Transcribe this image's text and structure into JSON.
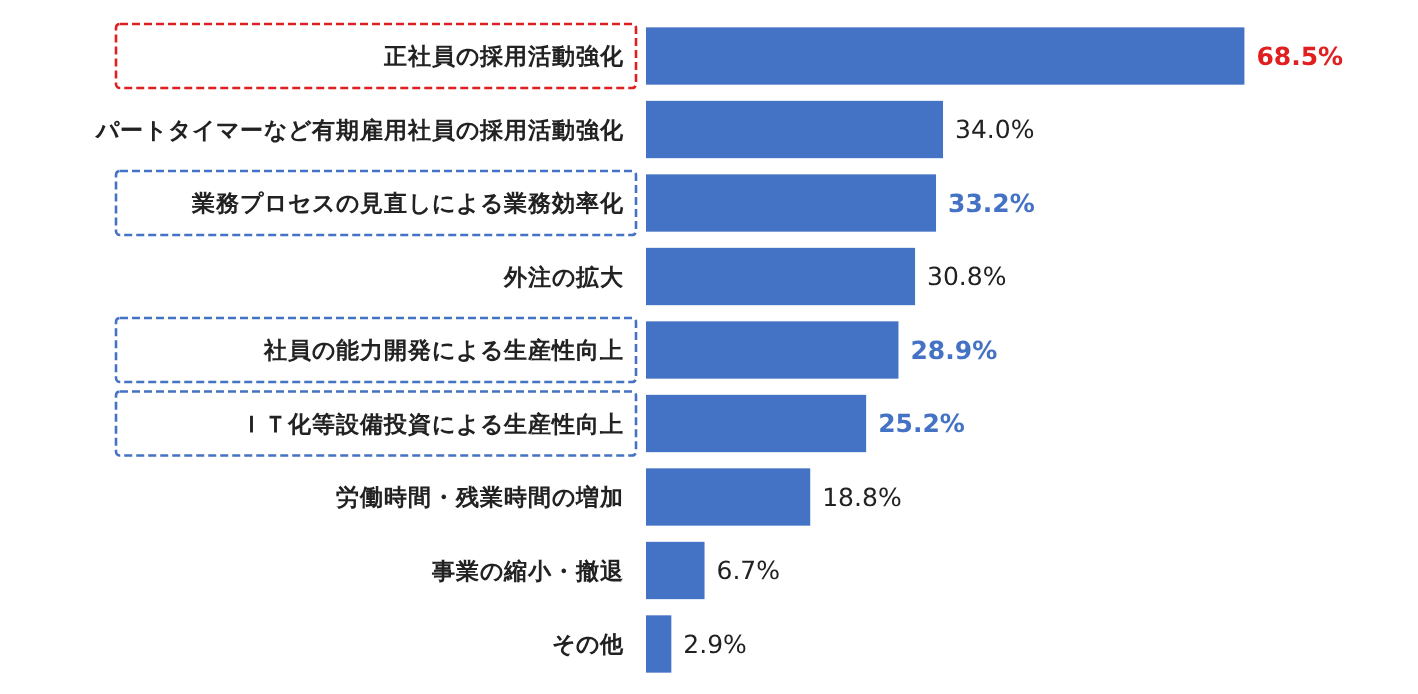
{
  "chart_data": {
    "type": "bar",
    "orientation": "horizontal",
    "categories": [
      "正社員の採用活動強化",
      "パートタイマーなど有期雇用社員の採用活動強化",
      "業務プロセスの見直しによる業務効率化",
      "外注の拡大",
      "社員の能力開発による生産性向上",
      "ＩＴ化等設備投資による生産性向上",
      "労働時間・残業時間の増加",
      "事業の縮小・撤退",
      "その他"
    ],
    "values": [
      68.5,
      34.0,
      33.2,
      30.8,
      28.9,
      25.2,
      18.8,
      6.7,
      2.9
    ],
    "color": "#4472c4",
    "data_labels": true,
    "value_labels": [
      "68.5%",
      "34.0%",
      "33.2%",
      "30.8%",
      "28.9%",
      "25.2%",
      "18.8%",
      "6.7%",
      "2.9%"
    ]
  }
}
